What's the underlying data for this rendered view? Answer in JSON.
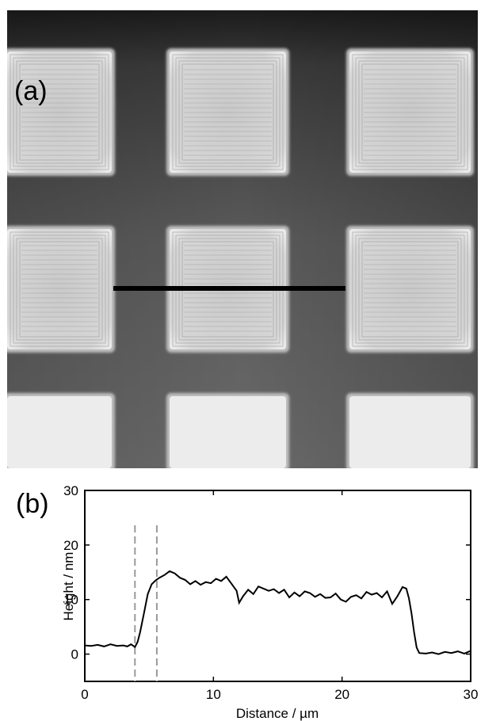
{
  "panel_a": {
    "label": "(a)"
  },
  "panel_b": {
    "label": "(b)"
  },
  "chart_data": {
    "type": "line",
    "xlabel": "Distance / µm",
    "ylabel": "Height / nm",
    "xlim": [
      0,
      30
    ],
    "ylim": [
      -5,
      30
    ],
    "xticks": [
      "0",
      "10",
      "20",
      "30"
    ],
    "yticks": [
      "0",
      "10",
      "20",
      "30"
    ],
    "grid": false,
    "line_color": "#000000",
    "marker_color": "#999999",
    "vertical_markers": [
      3.9,
      5.6
    ],
    "x": [
      0,
      0.5,
      1,
      1.5,
      2,
      2.5,
      3,
      3.3,
      3.6,
      3.9,
      4.1,
      4.3,
      4.6,
      4.9,
      5.2,
      5.5,
      5.8,
      6.2,
      6.6,
      7.0,
      7.4,
      7.8,
      8.2,
      8.6,
      9.0,
      9.4,
      9.8,
      10.2,
      10.6,
      11.0,
      11.4,
      11.8,
      12.0,
      12.3,
      12.7,
      13.1,
      13.5,
      13.9,
      14.3,
      14.7,
      15.1,
      15.5,
      15.9,
      16.3,
      16.7,
      17.1,
      17.5,
      17.9,
      18.3,
      18.7,
      19.1,
      19.5,
      19.9,
      20.3,
      20.7,
      21.1,
      21.5,
      21.9,
      22.3,
      22.7,
      23.1,
      23.5,
      23.9,
      24.3,
      24.7,
      25.0,
      25.2,
      25.4,
      25.6,
      25.8,
      26.0,
      26.5,
      27,
      27.5,
      28,
      28.5,
      29,
      29.5,
      30
    ],
    "y": [
      1.6,
      1.5,
      1.7,
      1.4,
      1.8,
      1.5,
      1.6,
      1.4,
      1.8,
      1.3,
      2.2,
      4.0,
      7.5,
      11.0,
      12.8,
      13.5,
      14.0,
      14.5,
      15.2,
      14.8,
      14.0,
      13.6,
      12.8,
      13.4,
      12.7,
      13.2,
      13.0,
      13.8,
      13.4,
      14.2,
      12.9,
      11.6,
      9.4,
      10.6,
      11.8,
      11.0,
      12.4,
      12.0,
      11.6,
      11.9,
      11.2,
      11.8,
      10.4,
      11.3,
      10.6,
      11.5,
      11.2,
      10.5,
      11.0,
      10.3,
      10.4,
      11.1,
      10.0,
      9.6,
      10.5,
      10.8,
      10.2,
      11.4,
      10.9,
      11.2,
      10.4,
      11.5,
      9.2,
      10.6,
      12.3,
      12.0,
      10.2,
      7.5,
      4.0,
      1.2,
      0.2,
      0.1,
      0.3,
      0.0,
      0.4,
      0.2,
      0.5,
      0.1,
      0.6
    ]
  }
}
